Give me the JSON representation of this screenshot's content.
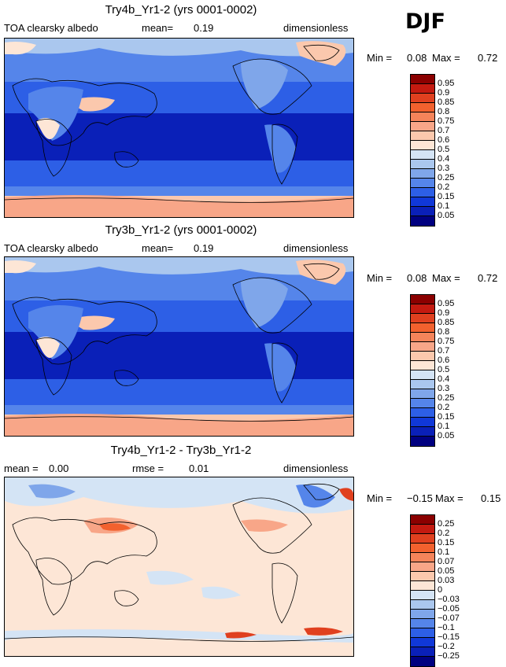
{
  "season": "DJF",
  "panels": [
    {
      "title": "Try4b_Yr1-2 (yrs 0001-0002)",
      "left_label": "TOA clearsky albedo",
      "mid_label": "mean=",
      "mid_value": "0.19",
      "right_label": "dimensionless",
      "min_label": "Min =",
      "min_value": "0.08",
      "max_label": "Max =",
      "max_value": "0.72",
      "colorbar_labels": [
        "0.95",
        "0.9",
        "0.85",
        "0.8",
        "0.75",
        "0.7",
        "0.6",
        "0.5",
        "0.4",
        "0.3",
        "0.25",
        "0.2",
        "0.15",
        "0.1",
        "0.05"
      ]
    },
    {
      "title": "Try3b_Yr1-2 (yrs 0001-0002)",
      "left_label": "TOA clearsky albedo",
      "mid_label": "mean=",
      "mid_value": "0.19",
      "right_label": "dimensionless",
      "min_label": "Min =",
      "min_value": "0.08",
      "max_label": "Max =",
      "max_value": "0.72",
      "colorbar_labels": [
        "0.95",
        "0.9",
        "0.85",
        "0.8",
        "0.75",
        "0.7",
        "0.6",
        "0.5",
        "0.4",
        "0.3",
        "0.25",
        "0.2",
        "0.15",
        "0.1",
        "0.05"
      ]
    },
    {
      "title": "Try4b_Yr1-2 - Try3b_Yr1-2",
      "left_label": "mean =",
      "left_value": "0.00",
      "mid_label": "rmse =",
      "mid_value": "0.01",
      "right_label": "dimensionless",
      "min_label": "Min =",
      "min_value": "−0.15",
      "max_label": "Max =",
      "max_value": "0.15",
      "colorbar_labels": [
        "0.25",
        "0.2",
        "0.15",
        "0.1",
        "0.07",
        "0.05",
        "0.03",
        "0",
        "−0.03",
        "−0.05",
        "−0.07",
        "−0.1",
        "−0.15",
        "−0.2",
        "−0.25"
      ]
    }
  ],
  "colors": {
    "abs_scale": [
      "#8b0000",
      "#c41a10",
      "#e0401f",
      "#f2612e",
      "#f5845a",
      "#f8a688",
      "#fbc8ad",
      "#fde6d6",
      "#d4e4f5",
      "#aac7ee",
      "#7fa6ea",
      "#5585ea",
      "#2d5fe6",
      "#1038d8",
      "#0a20b8",
      "#000080"
    ],
    "diff_scale": [
      "#8b0000",
      "#c41a10",
      "#e0401f",
      "#f2612e",
      "#f5845a",
      "#f8a688",
      "#fbc8ad",
      "#fde6d6",
      "#d4e4f5",
      "#aac7ee",
      "#7fa6ea",
      "#5585ea",
      "#2d5fe6",
      "#1038d8",
      "#0a20b8",
      "#000080"
    ]
  },
  "chart_data": [
    {
      "type": "heatmap",
      "title": "Try4b_Yr1-2 (yrs 0001-0002)",
      "variable": "TOA clearsky albedo",
      "units": "dimensionless",
      "mean": 0.19,
      "min": 0.08,
      "max": 0.72,
      "contour_levels": [
        0.05,
        0.1,
        0.15,
        0.2,
        0.25,
        0.3,
        0.4,
        0.5,
        0.6,
        0.7,
        0.75,
        0.8,
        0.85,
        0.9,
        0.95
      ]
    },
    {
      "type": "heatmap",
      "title": "Try3b_Yr1-2 (yrs 0001-0002)",
      "variable": "TOA clearsky albedo",
      "units": "dimensionless",
      "mean": 0.19,
      "min": 0.08,
      "max": 0.72,
      "contour_levels": [
        0.05,
        0.1,
        0.15,
        0.2,
        0.25,
        0.3,
        0.4,
        0.5,
        0.6,
        0.7,
        0.75,
        0.8,
        0.85,
        0.9,
        0.95
      ]
    },
    {
      "type": "heatmap",
      "title": "Try4b_Yr1-2 - Try3b_Yr1-2",
      "units": "dimensionless",
      "mean": 0.0,
      "rmse": 0.01,
      "min": -0.15,
      "max": 0.15,
      "contour_levels": [
        -0.25,
        -0.2,
        -0.15,
        -0.1,
        -0.07,
        -0.05,
        -0.03,
        0,
        0.03,
        0.05,
        0.07,
        0.1,
        0.15,
        0.2,
        0.25
      ]
    }
  ]
}
